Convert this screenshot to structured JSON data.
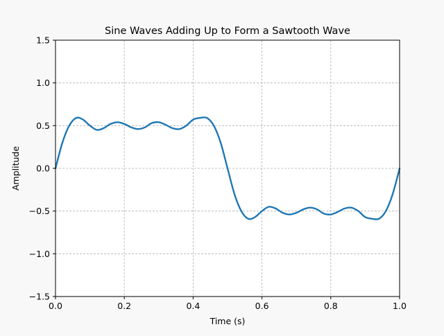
{
  "chart_data": {
    "type": "line",
    "title": "Sine Waves Adding Up to Form a Sawtooth Wave",
    "xlabel": "Time (s)",
    "ylabel": "Amplitude",
    "xlim": [
      0.0,
      1.0
    ],
    "ylim": [
      -1.5,
      1.5
    ],
    "grid": true,
    "x_ticks": [
      0.0,
      0.2,
      0.4,
      0.6,
      0.8,
      1.0
    ],
    "x_tick_labels": [
      "0.0",
      "0.2",
      "0.4",
      "0.6",
      "0.8",
      "1.0"
    ],
    "y_ticks": [
      -1.5,
      -1.0,
      -0.5,
      0.0,
      0.5,
      1.0,
      1.5
    ],
    "y_tick_labels": [
      "−1.5",
      "−1.0",
      "−0.5",
      "0.0",
      "0.5",
      "1.0",
      "1.5"
    ],
    "series": [
      {
        "color": "#1f77b4",
        "x": [
          0.0,
          0.02,
          0.04,
          0.06,
          0.08,
          0.1,
          0.12,
          0.14,
          0.16,
          0.18,
          0.2,
          0.22,
          0.24,
          0.26,
          0.28,
          0.3,
          0.32,
          0.34,
          0.36,
          0.38,
          0.4,
          0.42,
          0.44,
          0.46,
          0.48,
          0.5,
          0.52,
          0.54,
          0.56,
          0.58,
          0.6,
          0.62,
          0.64,
          0.66,
          0.68,
          0.7,
          0.72,
          0.74,
          0.76,
          0.78,
          0.8,
          0.82,
          0.84,
          0.86,
          0.88,
          0.9,
          0.92,
          0.94,
          0.96,
          0.98,
          1.0
        ],
        "y": [
          0.0,
          0.3,
          0.5,
          0.59,
          0.57,
          0.5,
          0.45,
          0.47,
          0.52,
          0.54,
          0.52,
          0.48,
          0.46,
          0.48,
          0.53,
          0.54,
          0.51,
          0.47,
          0.46,
          0.5,
          0.57,
          0.59,
          0.59,
          0.5,
          0.3,
          0.0,
          -0.3,
          -0.5,
          -0.59,
          -0.57,
          -0.5,
          -0.45,
          -0.47,
          -0.52,
          -0.54,
          -0.52,
          -0.48,
          -0.46,
          -0.48,
          -0.53,
          -0.54,
          -0.51,
          -0.47,
          -0.46,
          -0.5,
          -0.57,
          -0.59,
          -0.59,
          -0.5,
          -0.3,
          0.0
        ]
      }
    ]
  }
}
